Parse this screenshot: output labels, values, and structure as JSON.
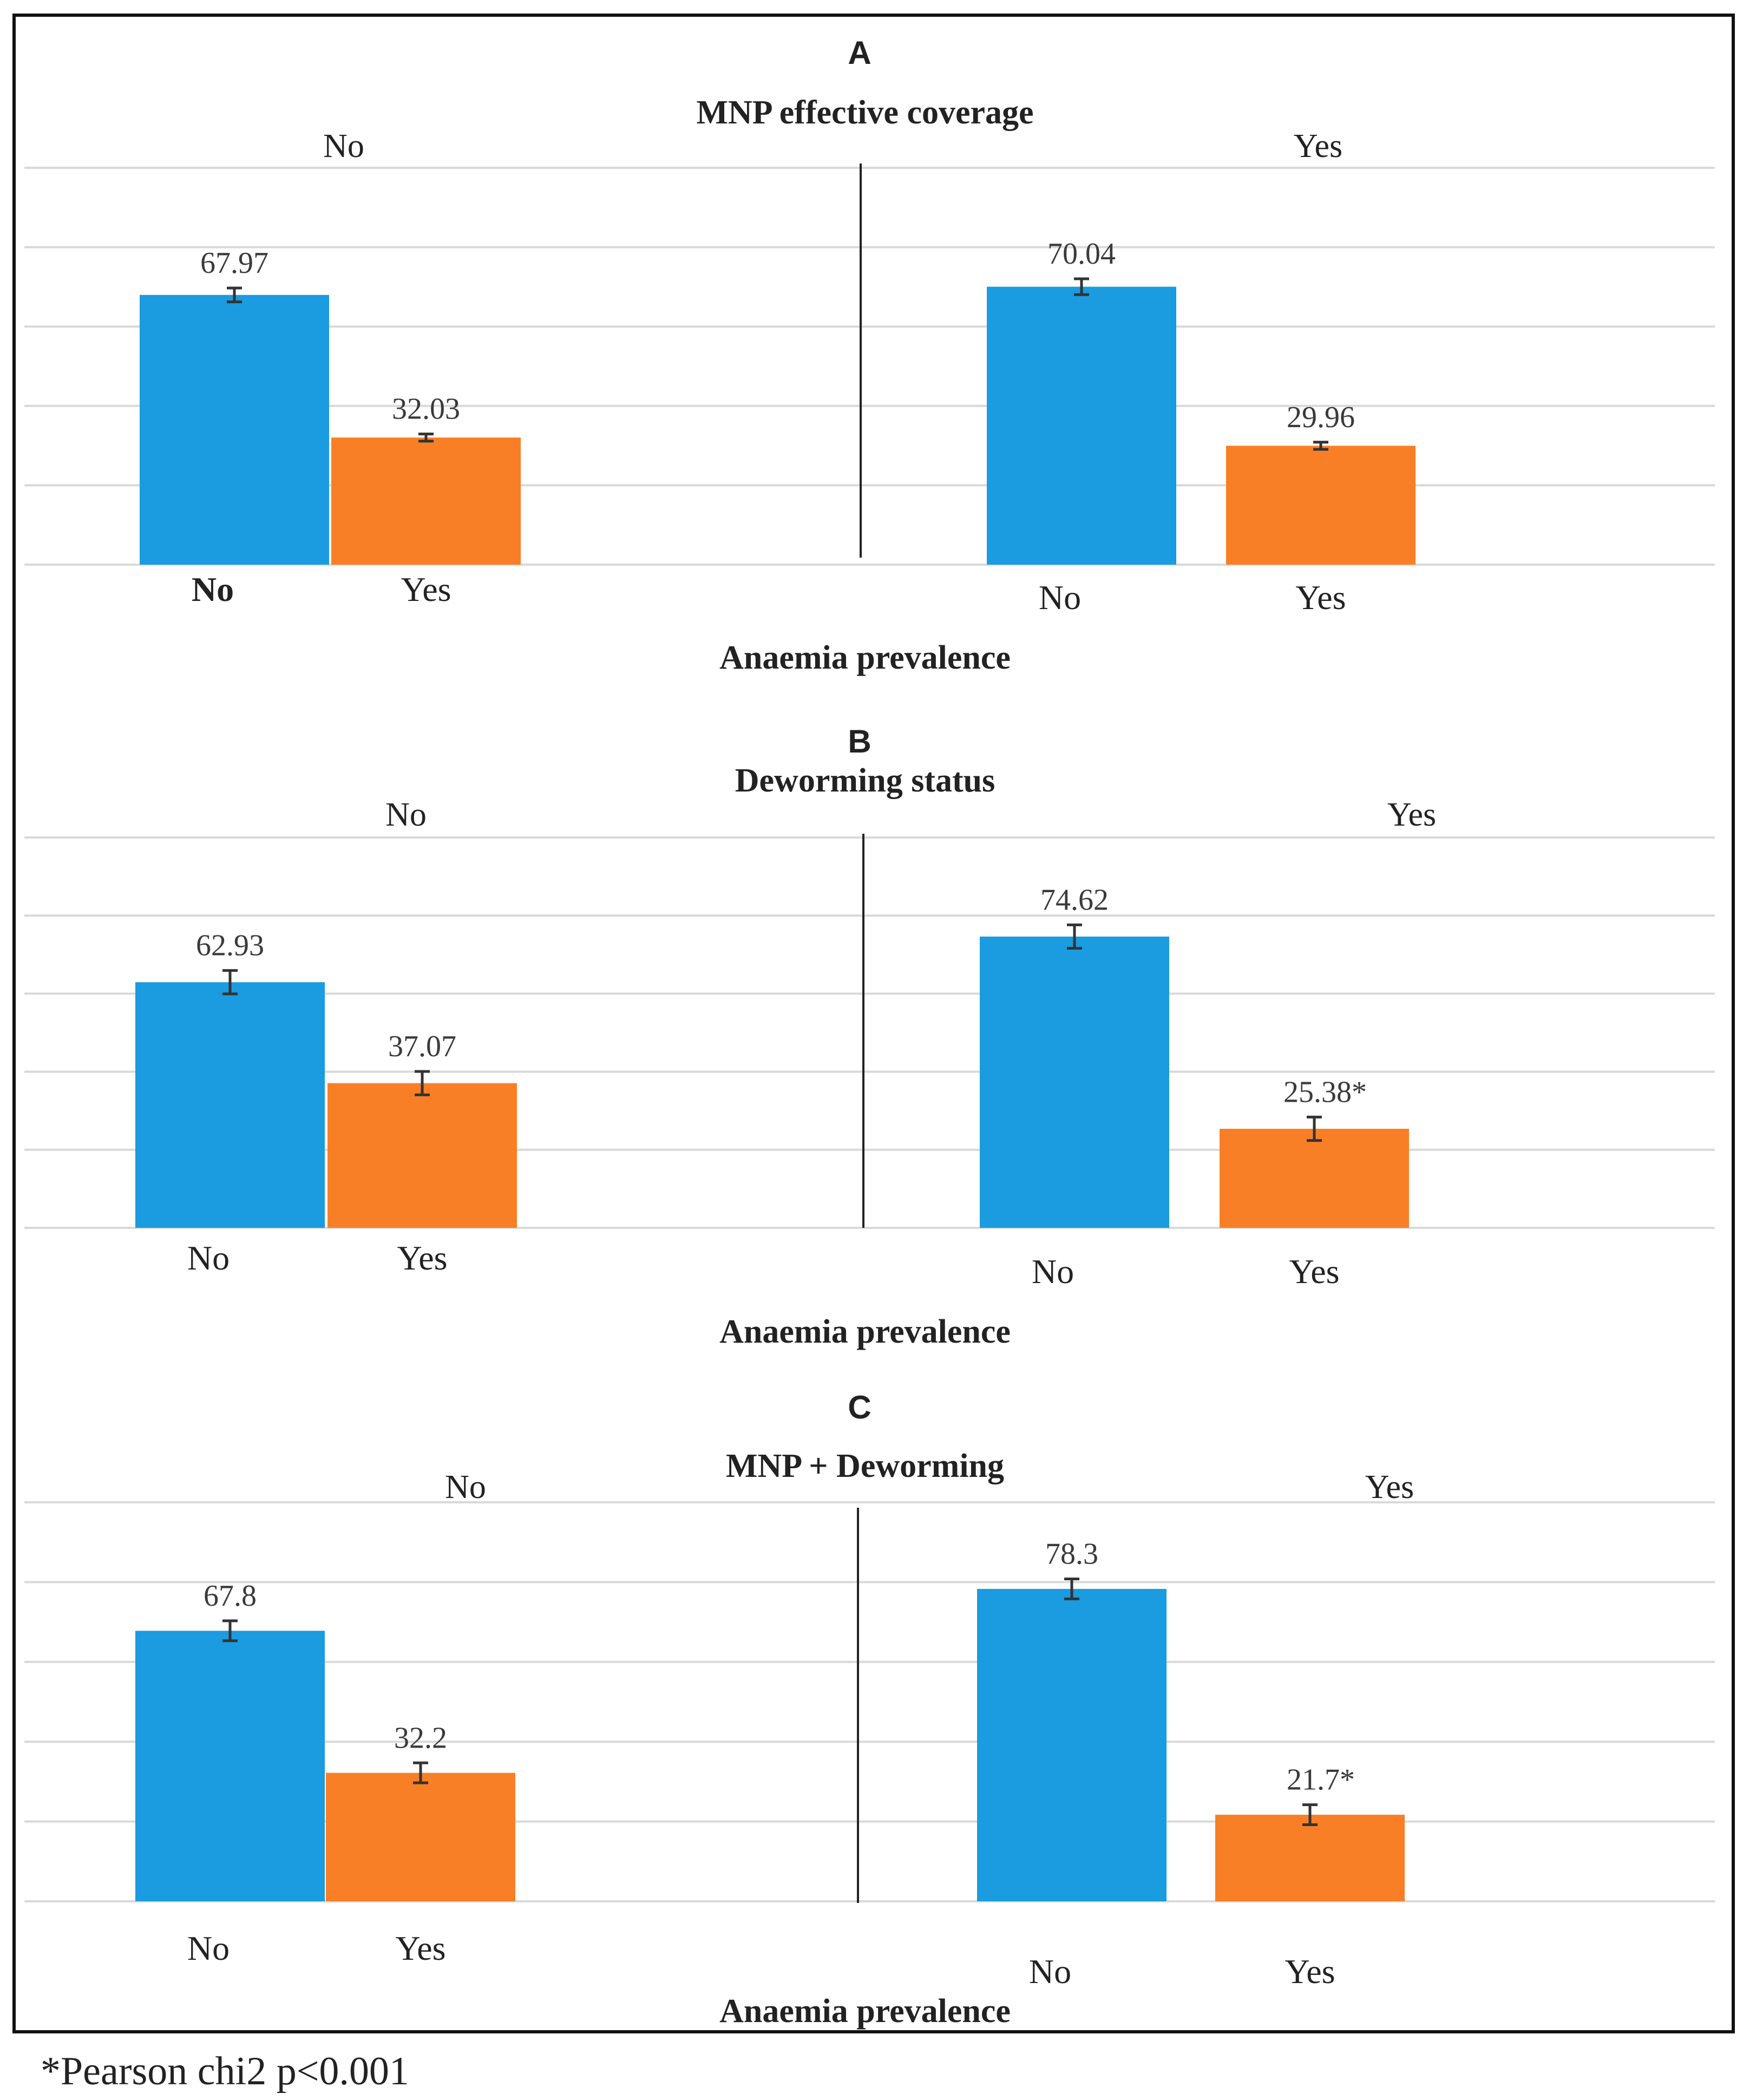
{
  "chart_data": [
    {
      "type": "bar",
      "panel": "A",
      "title": "MNP effective coverage",
      "xlabel": "Anaemia prevalence",
      "ylabel": "",
      "ylim": [
        0,
        100
      ],
      "gridlines": true,
      "series_colors": {
        "No": "#1b9be0",
        "Yes": "#f97f26"
      },
      "groups": [
        {
          "name": "No",
          "categories": [
            "No",
            "Yes"
          ],
          "values": [
            67.97,
            32.03
          ],
          "labels": [
            "67.97",
            "32.03"
          ],
          "errors": [
            3.5,
            1.8
          ],
          "bold_first_category": true
        },
        {
          "name": "Yes",
          "categories": [
            "No",
            "Yes"
          ],
          "values": [
            70.04,
            29.96
          ],
          "labels": [
            "70.04",
            "29.96"
          ],
          "errors": [
            4.0,
            1.8
          ],
          "bold_first_category": false
        }
      ]
    },
    {
      "type": "bar",
      "panel": "B",
      "title": "Deworming status",
      "xlabel": "Anaemia prevalence",
      "ylabel": "",
      "ylim": [
        0,
        100
      ],
      "gridlines": true,
      "series_colors": {
        "No": "#1b9be0",
        "Yes": "#f97f26"
      },
      "groups": [
        {
          "name": "No",
          "categories": [
            "No",
            "Yes"
          ],
          "values": [
            62.93,
            37.07
          ],
          "labels": [
            "62.93",
            "37.07"
          ],
          "errors": [
            6.0,
            6.0
          ],
          "bold_first_category": false
        },
        {
          "name": "Yes",
          "categories": [
            "No",
            "Yes"
          ],
          "values": [
            74.62,
            25.38
          ],
          "labels": [
            "74.62",
            "25.38*"
          ],
          "errors": [
            6.0,
            6.0
          ],
          "bold_first_category": false
        }
      ]
    },
    {
      "type": "bar",
      "panel": "C",
      "title": "MNP + Deworming",
      "xlabel": "Anaemia prevalence",
      "ylabel": "",
      "ylim": [
        0,
        100
      ],
      "gridlines": true,
      "series_colors": {
        "No": "#1b9be0",
        "Yes": "#f97f26"
      },
      "groups": [
        {
          "name": "No",
          "categories": [
            "No",
            "Yes"
          ],
          "values": [
            67.8,
            32.2
          ],
          "labels": [
            "67.8",
            "32.2"
          ],
          "errors": [
            5.0,
            5.0
          ],
          "bold_first_category": false
        },
        {
          "name": "Yes",
          "categories": [
            "No",
            "Yes"
          ],
          "values": [
            78.3,
            21.7
          ],
          "labels": [
            "78.3",
            "21.7*"
          ],
          "errors": [
            5.0,
            5.0
          ],
          "bold_first_category": false
        }
      ]
    }
  ],
  "footnote": "*Pearson chi2  p<0.001"
}
